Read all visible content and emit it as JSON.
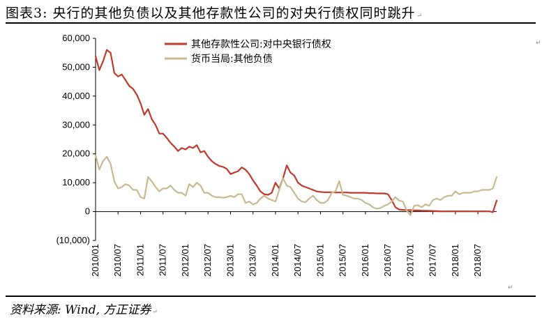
{
  "figure": {
    "title": "图表3:  央行的其他负债以及其他存款性公司的对央行债权同时跳升",
    "source": "资料来源: Wind, 方正证券",
    "return_mark": "↵"
  },
  "chart_data": {
    "type": "line",
    "title": "",
    "xlabel": "",
    "ylabel": "",
    "ylim": [
      -10000,
      60000
    ],
    "xlim": [
      "2010/01",
      "2018/12"
    ],
    "y_ticks": [
      -10000,
      0,
      10000,
      20000,
      30000,
      40000,
      50000,
      60000
    ],
    "y_tick_labels": [
      "(10,000)",
      "0",
      "10,000",
      "20,000",
      "30,000",
      "40,000",
      "50,000",
      "60,000"
    ],
    "x_ticks": [
      "2010/01",
      "2010/07",
      "2011/01",
      "2011/07",
      "2012/01",
      "2012/07",
      "2013/01",
      "2013/07",
      "2014/01",
      "2014/07",
      "2015/01",
      "2015/07",
      "2016/01",
      "2016/07",
      "2017/01",
      "2017/07",
      "2018/01",
      "2018/07"
    ],
    "legend_position": "top-center",
    "grid": false,
    "series": [
      {
        "name": "其他存款性公司:对中央银行债权",
        "color": "#c0392b",
        "points": [
          [
            "2010/01",
            53800
          ],
          [
            "2010/02",
            49000
          ],
          [
            "2010/03",
            52000
          ],
          [
            "2010/04",
            56000
          ],
          [
            "2010/05",
            55000
          ],
          [
            "2010/06",
            48000
          ],
          [
            "2010/07",
            46800
          ],
          [
            "2010/08",
            47500
          ],
          [
            "2010/09",
            45500
          ],
          [
            "2010/10",
            43500
          ],
          [
            "2010/11",
            42500
          ],
          [
            "2010/12",
            40500
          ],
          [
            "2011/01",
            37500
          ],
          [
            "2011/02",
            33500
          ],
          [
            "2011/03",
            35500
          ],
          [
            "2011/04",
            32000
          ],
          [
            "2011/05",
            30000
          ],
          [
            "2011/06",
            27000
          ],
          [
            "2011/07",
            27000
          ],
          [
            "2011/08",
            25500
          ],
          [
            "2011/09",
            23800
          ],
          [
            "2011/10",
            22500
          ],
          [
            "2011/11",
            21000
          ],
          [
            "2011/12",
            22000
          ],
          [
            "2012/01",
            21500
          ],
          [
            "2012/02",
            22500
          ],
          [
            "2012/03",
            22000
          ],
          [
            "2012/04",
            23000
          ],
          [
            "2012/05",
            20500
          ],
          [
            "2012/06",
            21000
          ],
          [
            "2012/07",
            19000
          ],
          [
            "2012/08",
            17500
          ],
          [
            "2012/09",
            16500
          ],
          [
            "2012/10",
            15800
          ],
          [
            "2012/11",
            15500
          ],
          [
            "2012/12",
            14800
          ],
          [
            "2013/01",
            13000
          ],
          [
            "2013/02",
            13500
          ],
          [
            "2013/03",
            14000
          ],
          [
            "2013/04",
            15300
          ],
          [
            "2013/05",
            14500
          ],
          [
            "2013/06",
            13000
          ],
          [
            "2013/07",
            10800
          ],
          [
            "2013/08",
            9000
          ],
          [
            "2013/09",
            7000
          ],
          [
            "2013/10",
            6000
          ],
          [
            "2013/11",
            5800
          ],
          [
            "2013/12",
            6500
          ],
          [
            "2014/01",
            10000
          ],
          [
            "2014/02",
            8000
          ],
          [
            "2014/03",
            11500
          ],
          [
            "2014/04",
            16000
          ],
          [
            "2014/05",
            13500
          ],
          [
            "2014/06",
            12500
          ],
          [
            "2014/07",
            10000
          ],
          [
            "2014/08",
            9000
          ],
          [
            "2014/09",
            8500
          ],
          [
            "2014/10",
            8000
          ],
          [
            "2014/11",
            7500
          ],
          [
            "2014/12",
            7000
          ],
          [
            "2015/01",
            6800
          ],
          [
            "2015/02",
            6700
          ],
          [
            "2015/03",
            6700
          ],
          [
            "2015/04",
            6700
          ],
          [
            "2015/05",
            6600
          ],
          [
            "2015/06",
            6600
          ],
          [
            "2015/07",
            6600
          ],
          [
            "2015/08",
            6600
          ],
          [
            "2015/09",
            6500
          ],
          [
            "2015/10",
            6500
          ],
          [
            "2015/11",
            6500
          ],
          [
            "2015/12",
            6500
          ],
          [
            "2016/01",
            6500
          ],
          [
            "2016/02",
            6400
          ],
          [
            "2016/03",
            6400
          ],
          [
            "2016/04",
            6300
          ],
          [
            "2016/05",
            6300
          ],
          [
            "2016/06",
            6300
          ],
          [
            "2016/07",
            6000
          ],
          [
            "2016/08",
            4000
          ],
          [
            "2016/09",
            1500
          ],
          [
            "2016/10",
            700
          ],
          [
            "2016/11",
            600
          ],
          [
            "2016/12",
            500
          ],
          [
            "2017/01",
            500
          ],
          [
            "2017/02",
            400
          ],
          [
            "2017/03",
            400
          ],
          [
            "2017/04",
            300
          ],
          [
            "2017/05",
            300
          ],
          [
            "2017/06",
            250
          ],
          [
            "2017/07",
            200
          ],
          [
            "2017/08",
            150
          ],
          [
            "2017/09",
            100
          ],
          [
            "2017/10",
            100
          ],
          [
            "2017/11",
            100
          ],
          [
            "2017/12",
            100
          ],
          [
            "2018/01",
            100
          ],
          [
            "2018/02",
            100
          ],
          [
            "2018/03",
            100
          ],
          [
            "2018/04",
            100
          ],
          [
            "2018/05",
            100
          ],
          [
            "2018/06",
            100
          ],
          [
            "2018/07",
            100
          ],
          [
            "2018/08",
            100
          ],
          [
            "2018/09",
            100
          ],
          [
            "2018/10",
            100
          ],
          [
            "2018/11",
            -200
          ],
          [
            "2018/12",
            3800
          ]
        ]
      },
      {
        "name": "货币当局:其他负债",
        "color": "#c9b990",
        "points": [
          [
            "2010/01",
            19500
          ],
          [
            "2010/02",
            14500
          ],
          [
            "2010/03",
            17500
          ],
          [
            "2010/04",
            19000
          ],
          [
            "2010/05",
            16500
          ],
          [
            "2010/06",
            10500
          ],
          [
            "2010/07",
            8000
          ],
          [
            "2010/08",
            8500
          ],
          [
            "2010/09",
            9500
          ],
          [
            "2010/10",
            9000
          ],
          [
            "2010/11",
            7500
          ],
          [
            "2010/12",
            7500
          ],
          [
            "2011/01",
            5000
          ],
          [
            "2011/02",
            4500
          ],
          [
            "2011/03",
            12000
          ],
          [
            "2011/04",
            10500
          ],
          [
            "2011/05",
            8500
          ],
          [
            "2011/06",
            7000
          ],
          [
            "2011/07",
            8000
          ],
          [
            "2011/08",
            8000
          ],
          [
            "2011/09",
            9000
          ],
          [
            "2011/10",
            7500
          ],
          [
            "2011/11",
            6500
          ],
          [
            "2011/12",
            6500
          ],
          [
            "2012/01",
            5500
          ],
          [
            "2012/02",
            9500
          ],
          [
            "2012/03",
            8500
          ],
          [
            "2012/04",
            10000
          ],
          [
            "2012/05",
            9000
          ],
          [
            "2012/06",
            6500
          ],
          [
            "2012/07",
            6500
          ],
          [
            "2012/08",
            5500
          ],
          [
            "2012/09",
            5000
          ],
          [
            "2012/10",
            5000
          ],
          [
            "2012/11",
            4800
          ],
          [
            "2012/12",
            5000
          ],
          [
            "2013/01",
            5500
          ],
          [
            "2013/02",
            5000
          ],
          [
            "2013/03",
            6000
          ],
          [
            "2013/04",
            6000
          ],
          [
            "2013/05",
            3000
          ],
          [
            "2013/06",
            3500
          ],
          [
            "2013/07",
            2500
          ],
          [
            "2013/08",
            3000
          ],
          [
            "2013/09",
            4500
          ],
          [
            "2013/10",
            5500
          ],
          [
            "2013/11",
            4500
          ],
          [
            "2013/12",
            4000
          ],
          [
            "2014/01",
            3500
          ],
          [
            "2014/02",
            7500
          ],
          [
            "2014/03",
            11500
          ],
          [
            "2014/04",
            9000
          ],
          [
            "2014/05",
            8500
          ],
          [
            "2014/06",
            6500
          ],
          [
            "2014/07",
            4500
          ],
          [
            "2014/08",
            3500
          ],
          [
            "2014/09",
            3200
          ],
          [
            "2014/10",
            4500
          ],
          [
            "2014/11",
            5500
          ],
          [
            "2014/12",
            4000
          ],
          [
            "2015/01",
            3000
          ],
          [
            "2015/02",
            3000
          ],
          [
            "2015/03",
            4000
          ],
          [
            "2015/04",
            6500
          ],
          [
            "2015/05",
            7000
          ],
          [
            "2015/06",
            10500
          ],
          [
            "2015/07",
            5800
          ],
          [
            "2015/08",
            5500
          ],
          [
            "2015/09",
            5000
          ],
          [
            "2015/10",
            4500
          ],
          [
            "2015/11",
            4500
          ],
          [
            "2015/12",
            4000
          ],
          [
            "2016/01",
            3000
          ],
          [
            "2016/02",
            2500
          ],
          [
            "2016/03",
            1500
          ],
          [
            "2016/04",
            1000
          ],
          [
            "2016/05",
            1200
          ],
          [
            "2016/06",
            2000
          ],
          [
            "2016/07",
            2500
          ],
          [
            "2016/08",
            3500
          ],
          [
            "2016/09",
            5000
          ],
          [
            "2016/10",
            3800
          ],
          [
            "2016/11",
            3500
          ],
          [
            "2016/12",
            300
          ],
          [
            "2017/01",
            -1200
          ],
          [
            "2017/02",
            2000
          ],
          [
            "2017/03",
            2200
          ],
          [
            "2017/04",
            1500
          ],
          [
            "2017/05",
            2500
          ],
          [
            "2017/06",
            2000
          ],
          [
            "2017/07",
            4000
          ],
          [
            "2017/08",
            4500
          ],
          [
            "2017/09",
            4000
          ],
          [
            "2017/10",
            5000
          ],
          [
            "2017/11",
            5500
          ],
          [
            "2017/12",
            5500
          ],
          [
            "2018/01",
            7000
          ],
          [
            "2018/02",
            6000
          ],
          [
            "2018/03",
            6500
          ],
          [
            "2018/04",
            6500
          ],
          [
            "2018/05",
            6500
          ],
          [
            "2018/06",
            7000
          ],
          [
            "2018/07",
            7000
          ],
          [
            "2018/08",
            7500
          ],
          [
            "2018/09",
            7500
          ],
          [
            "2018/10",
            7500
          ],
          [
            "2018/11",
            8000
          ],
          [
            "2018/12",
            12000
          ]
        ]
      }
    ]
  }
}
